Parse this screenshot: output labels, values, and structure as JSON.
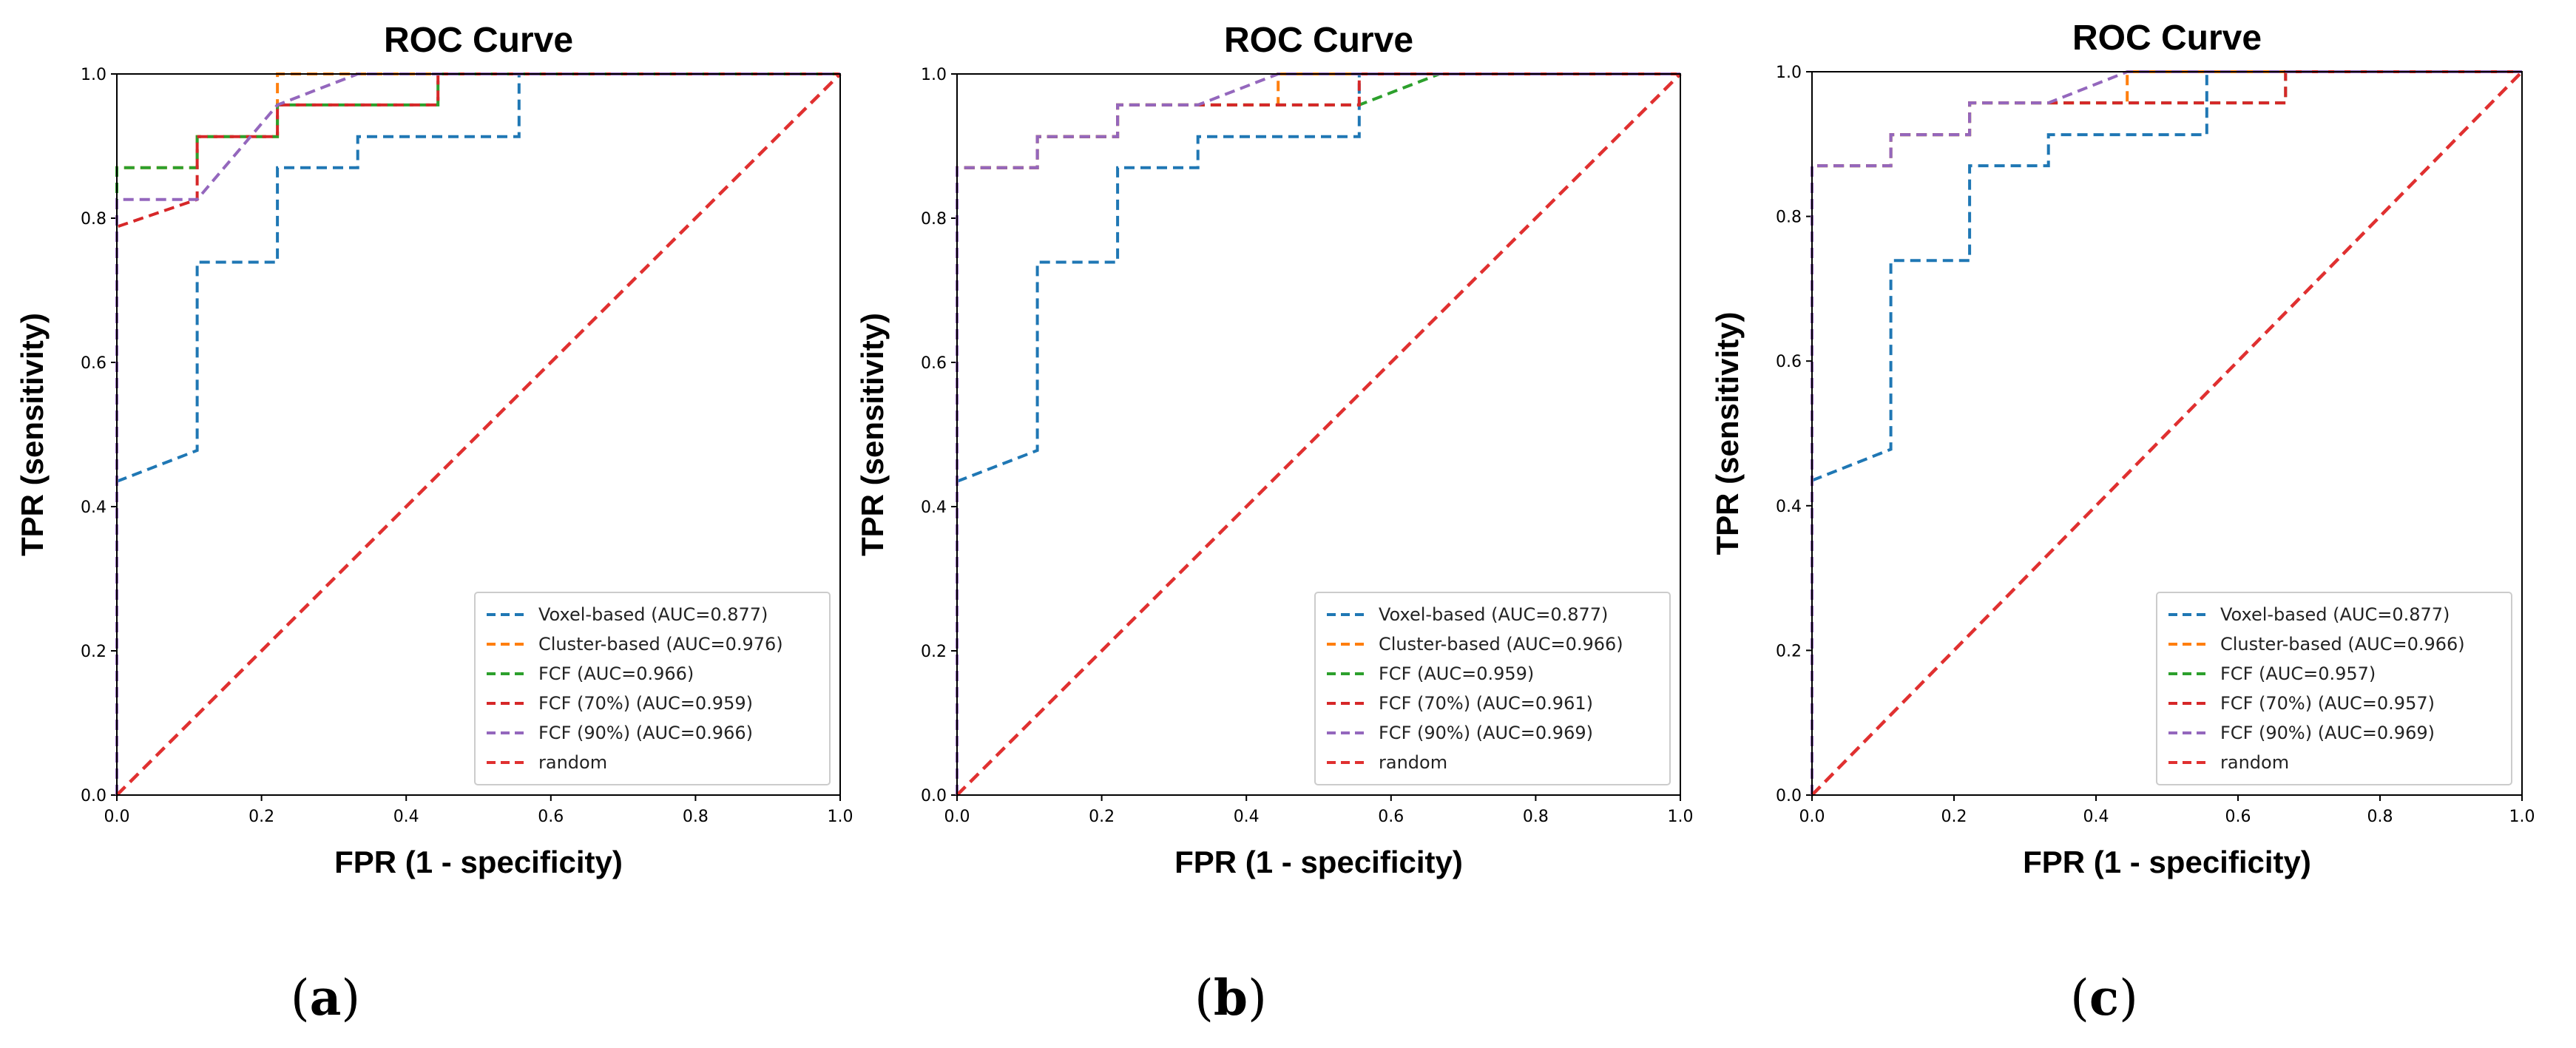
{
  "chart_data": [
    {
      "type": "line",
      "panel": "a",
      "title": "ROC Curve",
      "xlabel": "FPR (1 - specificity)",
      "ylabel": "TPR (sensitivity)",
      "xlim": [
        0,
        1
      ],
      "ylim": [
        0,
        1
      ],
      "xticks": [
        "0.0",
        "0.2",
        "0.4",
        "0.6",
        "0.8",
        "1.0"
      ],
      "yticks": [
        "0.0",
        "0.2",
        "0.4",
        "0.6",
        "0.8",
        "1.0"
      ],
      "legend_position": "lower-right",
      "series": [
        {
          "name": "Voxel-based (AUC=0.877)",
          "color": "#1f77b4",
          "x": [
            0,
            0.111,
            0.111,
            0.222,
            0.222,
            0.333,
            0.333,
            0.556,
            0.556,
            1.0
          ],
          "y": [
            0.435,
            0.478,
            0.739,
            0.739,
            0.87,
            0.87,
            0.913,
            0.913,
            1.0,
            1.0
          ]
        },
        {
          "name": "Cluster-based (AUC=0.976)",
          "color": "#ff7f0e",
          "x": [
            0,
            0,
            0.111,
            0.111,
            0.222,
            0.222,
            1.0
          ],
          "y": [
            0,
            0.87,
            0.87,
            0.913,
            0.913,
            1.0,
            1.0
          ]
        },
        {
          "name": "FCF (AUC=0.966)",
          "color": "#2ca02c",
          "x": [
            0,
            0,
            0.111,
            0.111,
            0.222,
            0.222,
            0.444,
            0.444,
            1.0
          ],
          "y": [
            0,
            0.87,
            0.87,
            0.913,
            0.913,
            0.957,
            0.957,
            1.0,
            1.0
          ]
        },
        {
          "name": "FCF (70%) (AUC=0.959)",
          "color": "#d62728",
          "x": [
            0,
            0,
            0.111,
            0.111,
            0.222,
            0.222,
            0.444,
            0.444,
            1.0
          ],
          "y": [
            0,
            0.788,
            0.826,
            0.913,
            0.913,
            0.957,
            0.957,
            1.0,
            1.0
          ]
        },
        {
          "name": "FCF (90%) (AUC=0.966)",
          "color": "#9467bd",
          "x": [
            0,
            0,
            0.111,
            0.222,
            0.333,
            1.0
          ],
          "y": [
            0,
            0.826,
            0.826,
            0.957,
            1.0,
            1.0
          ]
        },
        {
          "name": "random",
          "color": "#e03030",
          "random": true,
          "x": [
            0,
            1
          ],
          "y": [
            0,
            1
          ]
        }
      ]
    },
    {
      "type": "line",
      "panel": "b",
      "title": "ROC Curve",
      "xlabel": "FPR (1 - specificity)",
      "ylabel": "TPR (sensitivity)",
      "xlim": [
        0,
        1
      ],
      "ylim": [
        0,
        1
      ],
      "xticks": [
        "0.0",
        "0.2",
        "0.4",
        "0.6",
        "0.8",
        "1.0"
      ],
      "yticks": [
        "0.0",
        "0.2",
        "0.4",
        "0.6",
        "0.8",
        "1.0"
      ],
      "legend_position": "lower-right",
      "series": [
        {
          "name": "Voxel-based (AUC=0.877)",
          "color": "#1f77b4",
          "x": [
            0,
            0.111,
            0.111,
            0.222,
            0.222,
            0.333,
            0.333,
            0.556,
            0.556,
            1.0
          ],
          "y": [
            0.435,
            0.478,
            0.739,
            0.739,
            0.87,
            0.87,
            0.913,
            0.913,
            1.0,
            1.0
          ]
        },
        {
          "name": "Cluster-based (AUC=0.966)",
          "color": "#ff7f0e",
          "x": [
            0,
            0,
            0.111,
            0.111,
            0.222,
            0.222,
            0.444,
            0.444,
            1.0
          ],
          "y": [
            0,
            0.87,
            0.87,
            0.913,
            0.913,
            0.957,
            0.957,
            1.0,
            1.0
          ]
        },
        {
          "name": "FCF (AUC=0.959)",
          "color": "#2ca02c",
          "x": [
            0,
            0,
            0.111,
            0.111,
            0.222,
            0.222,
            0.556,
            0.667,
            1.0
          ],
          "y": [
            0,
            0.87,
            0.87,
            0.913,
            0.913,
            0.957,
            0.957,
            1.0,
            1.0
          ]
        },
        {
          "name": "FCF (70%) (AUC=0.961)",
          "color": "#d62728",
          "x": [
            0,
            0,
            0.111,
            0.111,
            0.222,
            0.222,
            0.556,
            0.556,
            1.0
          ],
          "y": [
            0,
            0.87,
            0.87,
            0.913,
            0.913,
            0.957,
            0.957,
            1.0,
            1.0
          ]
        },
        {
          "name": "FCF (90%) (AUC=0.969)",
          "color": "#9467bd",
          "x": [
            0,
            0,
            0.111,
            0.111,
            0.222,
            0.222,
            0.333,
            0.444,
            1.0
          ],
          "y": [
            0,
            0.87,
            0.87,
            0.913,
            0.913,
            0.957,
            0.957,
            1.0,
            1.0
          ]
        },
        {
          "name": "random",
          "color": "#e03030",
          "random": true,
          "x": [
            0,
            1
          ],
          "y": [
            0,
            1
          ]
        }
      ]
    },
    {
      "type": "line",
      "panel": "c",
      "title": "ROC Curve",
      "xlabel": "FPR (1 - specificity)",
      "ylabel": "TPR (sensitivity)",
      "xlim": [
        0,
        1
      ],
      "ylim": [
        0,
        1
      ],
      "xticks": [
        "0.0",
        "0.2",
        "0.4",
        "0.6",
        "0.8",
        "1.0"
      ],
      "yticks": [
        "0.0",
        "0.2",
        "0.4",
        "0.6",
        "0.8",
        "1.0"
      ],
      "legend_position": "lower-right",
      "series": [
        {
          "name": "Voxel-based (AUC=0.877)",
          "color": "#1f77b4",
          "x": [
            0,
            0.111,
            0.111,
            0.222,
            0.222,
            0.333,
            0.333,
            0.556,
            0.556,
            1.0
          ],
          "y": [
            0.435,
            0.478,
            0.739,
            0.739,
            0.87,
            0.87,
            0.913,
            0.913,
            1.0,
            1.0
          ]
        },
        {
          "name": "Cluster-based (AUC=0.966)",
          "color": "#ff7f0e",
          "x": [
            0,
            0,
            0.111,
            0.111,
            0.222,
            0.222,
            0.444,
            0.444,
            1.0
          ],
          "y": [
            0,
            0.87,
            0.87,
            0.913,
            0.913,
            0.957,
            0.957,
            1.0,
            1.0
          ]
        },
        {
          "name": "FCF (AUC=0.957)",
          "color": "#2ca02c",
          "x": [
            0,
            0,
            0.111,
            0.111,
            0.222,
            0.222,
            0.667,
            0.667,
            1.0
          ],
          "y": [
            0,
            0.87,
            0.87,
            0.913,
            0.913,
            0.957,
            0.957,
            1.0,
            1.0
          ]
        },
        {
          "name": "FCF (70%) (AUC=0.957)",
          "color": "#d62728",
          "x": [
            0,
            0,
            0.111,
            0.111,
            0.222,
            0.222,
            0.667,
            0.667,
            1.0
          ],
          "y": [
            0,
            0.87,
            0.87,
            0.913,
            0.913,
            0.957,
            0.957,
            1.0,
            1.0
          ]
        },
        {
          "name": "FCF (90%) (AUC=0.969)",
          "color": "#9467bd",
          "x": [
            0,
            0,
            0.111,
            0.111,
            0.222,
            0.222,
            0.333,
            0.444,
            1.0
          ],
          "y": [
            0,
            0.87,
            0.87,
            0.913,
            0.913,
            0.957,
            0.957,
            1.0,
            1.0
          ]
        },
        {
          "name": "random",
          "color": "#e03030",
          "random": true,
          "x": [
            0,
            1
          ],
          "y": [
            0,
            1
          ]
        }
      ]
    }
  ],
  "panel_labels": [
    {
      "open": "(",
      "letter": "a",
      "close": ")"
    },
    {
      "open": "(",
      "letter": "b",
      "close": ")"
    },
    {
      "open": "(",
      "letter": "c",
      "close": ")"
    }
  ]
}
